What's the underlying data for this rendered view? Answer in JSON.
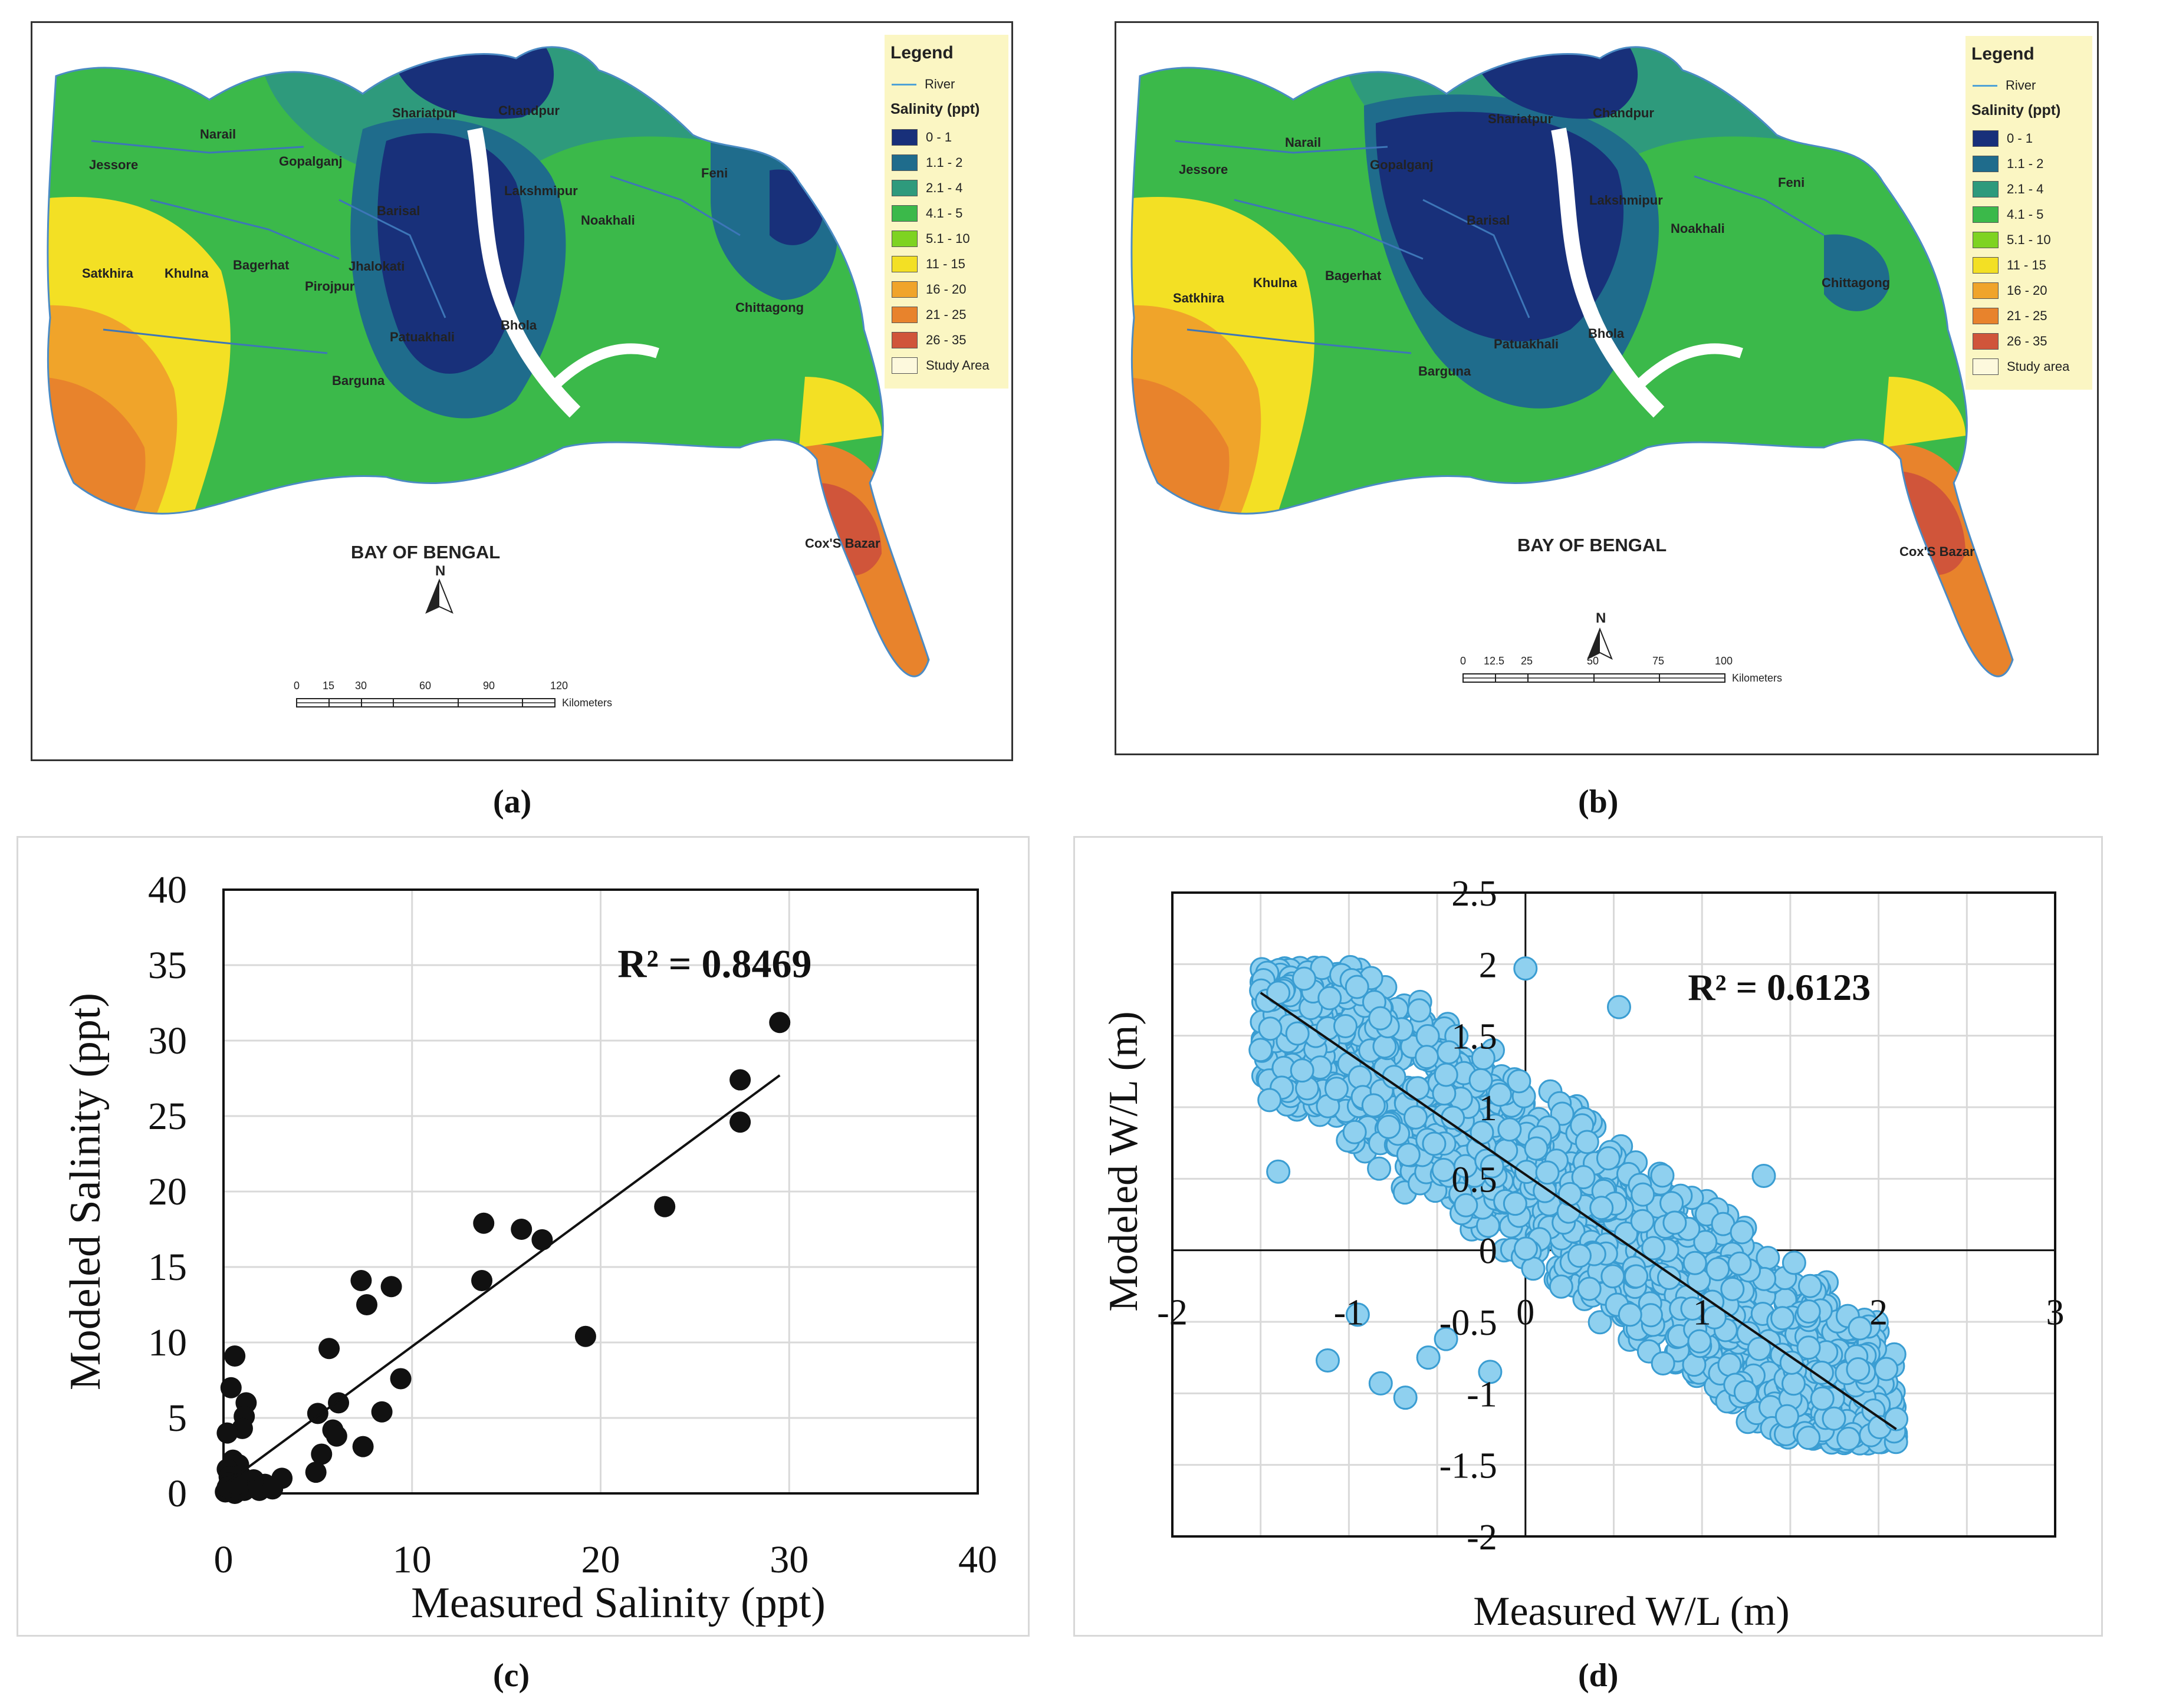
{
  "panel_a": {
    "caption": "(a)",
    "legend_title": "Legend",
    "legend_river": "River",
    "legend_subtitle": "Salinity (ppt)",
    "classes": [
      "0 - 1",
      "1.1 - 2",
      "2.1 - 4",
      "4.1 - 5",
      "5.1 - 10",
      "11 - 15",
      "16 - 20",
      "21 - 25",
      "26 - 35",
      "Study Area"
    ],
    "places": [
      "Shariatpur",
      "Chandpur",
      "Narail",
      "Gopalganj",
      "Jessore",
      "Feni",
      "Lakshmipur",
      "Barisal",
      "Noakhali",
      "Satkhira",
      "Khulna",
      "Bagerhat",
      "Jhalokati",
      "Pirojpur",
      "Chittagong",
      "Patuakhali",
      "Bhola",
      "Barguna",
      "Cox'S Bazar"
    ],
    "bay_label": "BAY OF BENGAL",
    "north": "N",
    "scale_ticks": [
      "0",
      "15",
      "30",
      "60",
      "90",
      "120"
    ],
    "scale_unit": "Kilometers"
  },
  "panel_b": {
    "caption": "(b)",
    "legend_title": "Legend",
    "legend_river": "River",
    "legend_subtitle": "Salinity (ppt)",
    "classes": [
      "0 - 1",
      "1.1 - 2",
      "2.1 - 4",
      "4.1 - 5",
      "5.1 - 10",
      "11 - 15",
      "16 - 20",
      "21 - 25",
      "26 - 35",
      "Study area"
    ],
    "places": [
      "Shariatpur",
      "Chandpur",
      "Narail",
      "Gopalganj",
      "Jessore",
      "Feni",
      "Lakshmipur",
      "Barisal",
      "Noakhali",
      "Satkhira",
      "Khulna",
      "Bagerhat",
      "Chittagong",
      "Patuakhali",
      "Bhola",
      "Barguna",
      "Cox'S Bazar"
    ],
    "bay_label": "BAY OF BENGAL",
    "north": "N",
    "scale_ticks": [
      "0",
      "12.5",
      "25",
      "50",
      "75",
      "100"
    ],
    "scale_unit": "Kilometers"
  },
  "colors": {
    "c0": "#18307a",
    "c1": "#1f6c8c",
    "c2": "#2e9a7c",
    "c3": "#3bb94a",
    "c4": "#7ed321",
    "c5": "#f3e024",
    "c6": "#f0a42a",
    "c7": "#e8832c",
    "c8": "#d0553a",
    "c9": "#fdf9dd",
    "scatter_c": "#111111",
    "scatter_d": "#8fd0ef",
    "scatter_d_edge": "#3a9dd2"
  },
  "chart_data": [
    {
      "type": "scatter",
      "caption": "(c)",
      "xlabel": "Measured Salinity (ppt)",
      "ylabel": "Modeled Salinity (ppt)",
      "xlim": [
        0,
        40
      ],
      "ylim": [
        0,
        40
      ],
      "xticks": [
        "0",
        "10",
        "20",
        "30",
        "40"
      ],
      "yticks": [
        "0",
        "5",
        "10",
        "15",
        "20",
        "25",
        "30",
        "35",
        "40"
      ],
      "annotation": "R² = 0.8469",
      "trendline": {
        "x": [
          0.3,
          29.5
        ],
        "y": [
          0.8,
          27.7
        ]
      },
      "points": [
        [
          29.5,
          31.2
        ],
        [
          27.4,
          27.4
        ],
        [
          27.4,
          24.6
        ],
        [
          23.4,
          19.0
        ],
        [
          13.8,
          17.9
        ],
        [
          15.8,
          17.5
        ],
        [
          16.9,
          16.8
        ],
        [
          13.7,
          14.1
        ],
        [
          7.3,
          14.1
        ],
        [
          8.9,
          13.7
        ],
        [
          7.6,
          12.5
        ],
        [
          19.2,
          10.4
        ],
        [
          5.6,
          9.6
        ],
        [
          0.6,
          9.1
        ],
        [
          0.4,
          7.0
        ],
        [
          9.4,
          7.6
        ],
        [
          6.1,
          6.0
        ],
        [
          1.2,
          6.0
        ],
        [
          1.1,
          5.1
        ],
        [
          5.0,
          5.3
        ],
        [
          8.4,
          5.4
        ],
        [
          1.0,
          4.3
        ],
        [
          0.2,
          4.0
        ],
        [
          5.8,
          4.2
        ],
        [
          6.0,
          3.8
        ],
        [
          7.4,
          3.1
        ],
        [
          5.2,
          2.6
        ],
        [
          0.5,
          2.2
        ],
        [
          0.8,
          1.9
        ],
        [
          4.9,
          1.4
        ],
        [
          3.1,
          1.0
        ],
        [
          0.2,
          1.6
        ],
        [
          0.3,
          1.1
        ],
        [
          1.0,
          0.8
        ],
        [
          0.9,
          1.2
        ],
        [
          1.6,
          0.9
        ],
        [
          2.2,
          0.6
        ],
        [
          0.4,
          0.3
        ],
        [
          0.1,
          0.1
        ],
        [
          0.6,
          0.0
        ],
        [
          1.1,
          0.2
        ],
        [
          1.9,
          0.2
        ],
        [
          0.3,
          0.7
        ],
        [
          0.2,
          0.4
        ],
        [
          2.6,
          0.3
        ],
        [
          0.7,
          0.6
        ]
      ]
    },
    {
      "type": "scatter",
      "caption": "(d)",
      "xlabel": "Measured W/L (m)",
      "ylabel": "Modeled W/L (m)",
      "xlim": [
        -2,
        3
      ],
      "ylim": [
        -2,
        2.5
      ],
      "xticks": [
        "-2",
        "-1",
        "0",
        "1",
        "2",
        "3"
      ],
      "yticks": [
        "-2",
        "-1.5",
        "-1",
        "-0.5",
        "0",
        "0.5",
        "1",
        "1.5",
        "2",
        "2.5"
      ],
      "annotation": "R² = 0.6123",
      "trendline": {
        "x": [
          -1.5,
          2.1
        ],
        "y": [
          1.8,
          -1.25
        ]
      },
      "cloud": {
        "n": 1500,
        "x_range": [
          -1.5,
          2.1
        ],
        "center_line": {
          "slope": -0.85,
          "intercept": 0.55
        },
        "spread": 0.75
      },
      "points": [
        [
          -1.4,
          1.8
        ],
        [
          -1.5,
          1.4
        ],
        [
          -1.45,
          1.05
        ],
        [
          -1.4,
          0.55
        ],
        [
          -1.12,
          -0.77
        ],
        [
          -0.95,
          -0.45
        ],
        [
          -0.82,
          -0.93
        ],
        [
          -0.68,
          -1.03
        ],
        [
          -0.55,
          -0.75
        ],
        [
          -0.2,
          -0.85
        ],
        [
          0.0,
          1.97
        ],
        [
          0.53,
          1.7
        ],
        [
          1.35,
          0.52
        ],
        [
          2.1,
          -1.18
        ],
        [
          -0.45,
          -0.62
        ]
      ]
    }
  ]
}
